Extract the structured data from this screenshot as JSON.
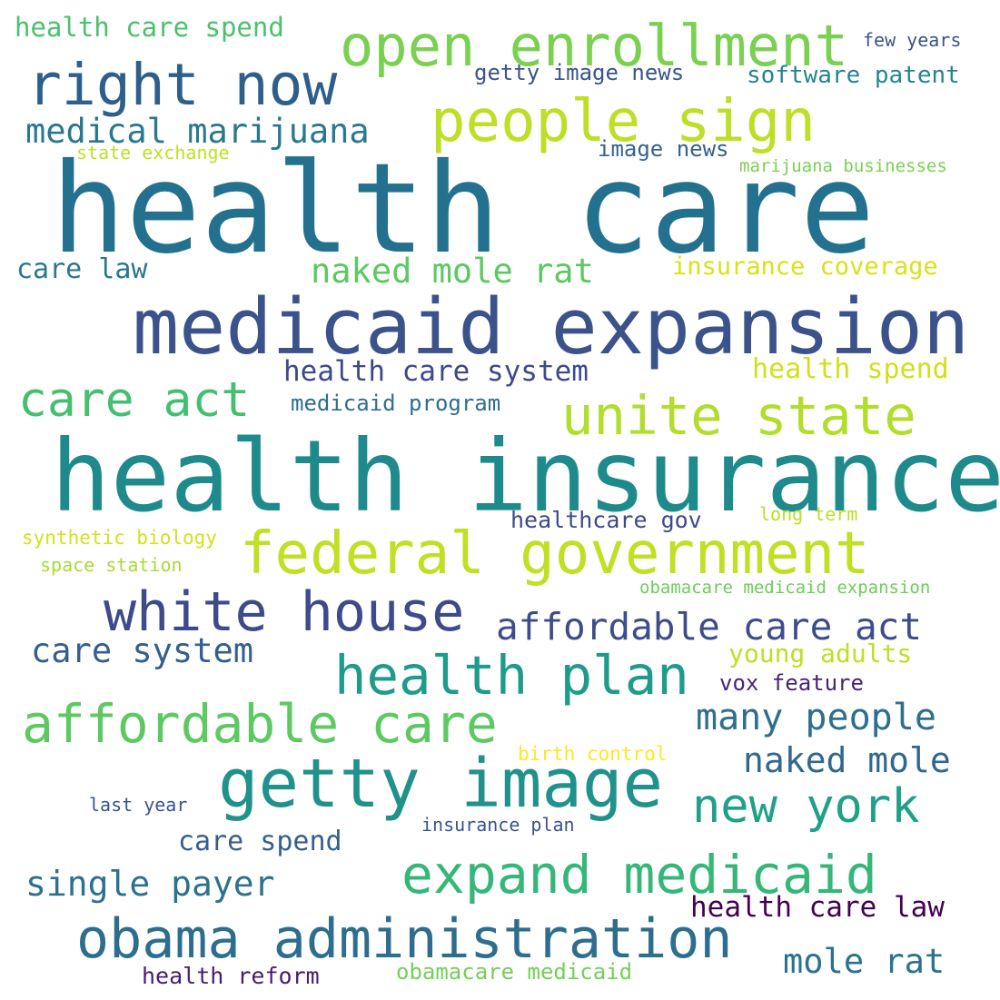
{
  "words": [
    {
      "text": "health care",
      "color": "#23718e"
    },
    {
      "text": "health insurance",
      "color": "#1f8a8c"
    },
    {
      "text": "medicaid expansion",
      "color": "#3b528b"
    },
    {
      "text": "federal government",
      "color": "#c2df23"
    },
    {
      "text": "getty image",
      "color": "#21918c"
    },
    {
      "text": "obama administration",
      "color": "#2d6e8e"
    },
    {
      "text": "open enrollment",
      "color": "#7ad151"
    },
    {
      "text": "right now",
      "color": "#2d5f8a"
    },
    {
      "text": "people sign",
      "color": "#bddf26"
    },
    {
      "text": "unite state",
      "color": "#b2dd2d"
    },
    {
      "text": "white house",
      "color": "#3e4a89"
    },
    {
      "text": "health plan",
      "color": "#1e9b8a"
    },
    {
      "text": "affordable care",
      "color": "#5ec962"
    },
    {
      "text": "expand medicaid",
      "color": "#35b779"
    },
    {
      "text": "care act",
      "color": "#44bf70"
    },
    {
      "text": "affordable care act",
      "color": "#3e4c8a"
    },
    {
      "text": "new york",
      "color": "#1fa187"
    },
    {
      "text": "medical marijuana",
      "color": "#2a788e"
    },
    {
      "text": "naked mole rat",
      "color": "#5cc863"
    },
    {
      "text": "care system",
      "color": "#355f8d"
    },
    {
      "text": "many people",
      "color": "#2e6f8e"
    },
    {
      "text": "naked mole",
      "color": "#31688e"
    },
    {
      "text": "single payer",
      "color": "#2c728e"
    },
    {
      "text": "mole rat",
      "color": "#2c728e"
    },
    {
      "text": "health care law",
      "color": "#440154"
    },
    {
      "text": "health care system",
      "color": "#3f4889"
    },
    {
      "text": "health care spend",
      "color": "#4ac16d"
    },
    {
      "text": "care law",
      "color": "#2a788e"
    },
    {
      "text": "insurance coverage",
      "color": "#d8e219"
    },
    {
      "text": "health spend",
      "color": "#d0e11c"
    },
    {
      "text": "care spend",
      "color": "#355f8d"
    },
    {
      "text": "software patent",
      "color": "#25858e"
    },
    {
      "text": "getty image news",
      "color": "#3a548c"
    },
    {
      "text": "image news",
      "color": "#33638d"
    },
    {
      "text": "medicaid program",
      "color": "#2e6e8e"
    },
    {
      "text": "healthcare gov",
      "color": "#3e4989"
    },
    {
      "text": "young adults",
      "color": "#c0df25"
    },
    {
      "text": "vox feature",
      "color": "#482475"
    },
    {
      "text": "health reform",
      "color": "#481c6e"
    },
    {
      "text": "obamacare medicaid",
      "color": "#73d056"
    },
    {
      "text": "few years",
      "color": "#3b528b"
    },
    {
      "text": "state exchange",
      "color": "#c2df23"
    },
    {
      "text": "marijuana businesses",
      "color": "#7ad151"
    },
    {
      "text": "synthetic biology",
      "color": "#d2e21b"
    },
    {
      "text": "space station",
      "color": "#a8db34"
    },
    {
      "text": "long term",
      "color": "#bade28"
    },
    {
      "text": "obamacare medicaid expansion",
      "color": "#6ccd5a"
    },
    {
      "text": "birth control",
      "color": "#fde725"
    },
    {
      "text": "last year",
      "color": "#3b528b"
    },
    {
      "text": "insurance plan",
      "color": "#3b528b"
    }
  ]
}
